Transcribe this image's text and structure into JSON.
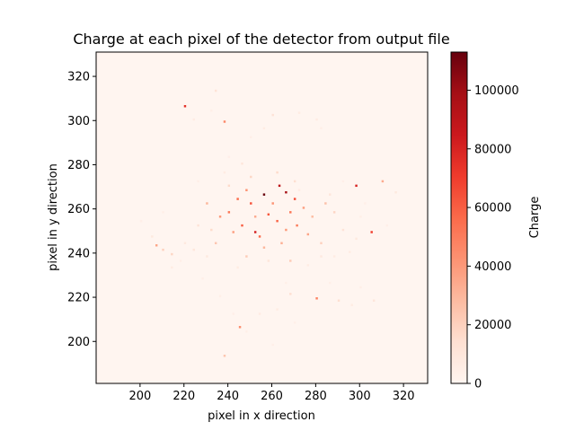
{
  "chart_data": {
    "type": "heatmap",
    "title": "Charge at each pixel of the detector from output file",
    "xlabel": "pixel in x direction",
    "ylabel": "pixel in y direction",
    "xlim": [
      180,
      331
    ],
    "ylim": [
      181,
      331
    ],
    "xticks": [
      200,
      220,
      240,
      260,
      280,
      300,
      320
    ],
    "yticks": [
      200,
      220,
      240,
      260,
      280,
      300,
      320
    ],
    "background_value": 0,
    "colormap": "Reds",
    "colorbar": {
      "label": "Charge",
      "min": 0,
      "max": 113000,
      "ticks": [
        0,
        20000,
        40000,
        60000,
        80000,
        100000
      ]
    },
    "cells": [
      [
        256,
        266,
        113000
      ],
      [
        266,
        267,
        98000
      ],
      [
        263,
        270,
        90000
      ],
      [
        252,
        249,
        82000
      ],
      [
        298,
        270,
        80000
      ],
      [
        220,
        306,
        75000
      ],
      [
        305,
        249,
        70000
      ],
      [
        270,
        264,
        66000
      ],
      [
        250,
        262,
        64000
      ],
      [
        258,
        257,
        62000
      ],
      [
        246,
        252,
        60000
      ],
      [
        262,
        254,
        58000
      ],
      [
        244,
        264,
        56000
      ],
      [
        254,
        247,
        56000
      ],
      [
        240,
        258,
        52000
      ],
      [
        268,
        258,
        52000
      ],
      [
        271,
        252,
        50000
      ],
      [
        280,
        219,
        48000
      ],
      [
        238,
        299,
        46000
      ],
      [
        245,
        206,
        44000
      ],
      [
        248,
        268,
        42000
      ],
      [
        260,
        262,
        42000
      ],
      [
        266,
        250,
        40000
      ],
      [
        236,
        256,
        40000
      ],
      [
        242,
        249,
        38000
      ],
      [
        274,
        260,
        38000
      ],
      [
        276,
        248,
        36000
      ],
      [
        207,
        243,
        36000
      ],
      [
        310,
        272,
        34000
      ],
      [
        252,
        256,
        34000
      ],
      [
        264,
        244,
        32000
      ],
      [
        256,
        242,
        30000
      ],
      [
        230,
        262,
        30000
      ],
      [
        278,
        256,
        28000
      ],
      [
        284,
        262,
        26000
      ],
      [
        238,
        193,
        24000
      ],
      [
        234,
        244,
        24000
      ],
      [
        248,
        238,
        22000
      ],
      [
        268,
        236,
        22000
      ],
      [
        282,
        244,
        20000
      ],
      [
        210,
        241,
        20000
      ],
      [
        214,
        239,
        18000
      ],
      [
        288,
        258,
        18000
      ],
      [
        250,
        274,
        18000
      ],
      [
        262,
        276,
        16000
      ],
      [
        232,
        250,
        16000
      ],
      [
        240,
        270,
        16000
      ],
      [
        270,
        272,
        14000
      ],
      [
        290,
        218,
        14000
      ],
      [
        268,
        221,
        14000
      ],
      [
        234,
        313,
        12000
      ],
      [
        260,
        302,
        12000
      ],
      [
        226,
        252,
        12000
      ],
      [
        292,
        250,
        12000
      ],
      [
        224,
        241,
        10000
      ],
      [
        286,
        266,
        10000
      ],
      [
        246,
        280,
        10000
      ],
      [
        258,
        236,
        10000
      ],
      [
        306,
        218,
        10000
      ],
      [
        316,
        267,
        8000
      ],
      [
        282,
        238,
        8000
      ],
      [
        230,
        238,
        8000
      ],
      [
        220,
        244,
        8000
      ],
      [
        205,
        247,
        8000
      ],
      [
        298,
        246,
        8000
      ],
      [
        244,
        233,
        6000
      ],
      [
        276,
        234,
        6000
      ],
      [
        295,
        240,
        6000
      ],
      [
        272,
        268,
        6000
      ],
      [
        238,
        276,
        6000
      ],
      [
        254,
        212,
        6000
      ],
      [
        262,
        214,
        6000
      ],
      [
        296,
        216,
        6000
      ],
      [
        288,
        238,
        6000
      ],
      [
        214,
        233,
        6000
      ],
      [
        224,
        300,
        6000
      ],
      [
        272,
        303,
        6000
      ],
      [
        280,
        300,
        6000
      ],
      [
        256,
        296,
        6000
      ],
      [
        242,
        212,
        4000
      ],
      [
        270,
        208,
        4000
      ],
      [
        286,
        226,
        4000
      ],
      [
        300,
        224,
        4000
      ],
      [
        228,
        228,
        4000
      ],
      [
        218,
        236,
        4000
      ],
      [
        240,
        283,
        4000
      ],
      [
        292,
        272,
        4000
      ],
      [
        210,
        258,
        4000
      ],
      [
        302,
        262,
        4000
      ],
      [
        226,
        272,
        4000
      ],
      [
        250,
        292,
        4000
      ],
      [
        232,
        304,
        4000
      ],
      [
        248,
        204,
        4000
      ],
      [
        266,
        226,
        4000
      ],
      [
        300,
        256,
        4000
      ],
      [
        200,
        254,
        4000
      ],
      [
        312,
        252,
        4000
      ],
      [
        236,
        220,
        4000
      ],
      [
        260,
        198,
        4000
      ],
      [
        282,
        296,
        4000
      ]
    ]
  }
}
